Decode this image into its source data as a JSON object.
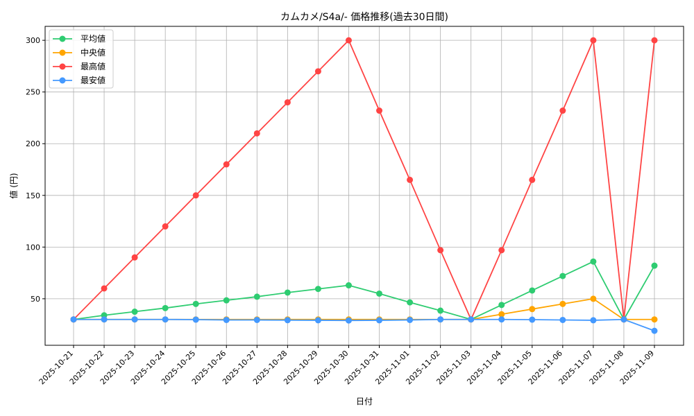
{
  "chart_data": {
    "type": "line",
    "title": "カムカメ/S4a/- 価格推移(過去30日間)",
    "xlabel": "日付",
    "ylabel": "値 (円)",
    "ylim": [
      5,
      313.5
    ],
    "yticks": [
      50,
      100,
      150,
      200,
      250,
      300
    ],
    "grid": true,
    "legend_position": "top-left",
    "x": [
      "2025-10-21",
      "2025-10-22",
      "2025-10-23",
      "2025-10-24",
      "2025-10-25",
      "2025-10-26",
      "2025-10-27",
      "2025-10-28",
      "2025-10-29",
      "2025-10-30",
      "2025-10-31",
      "2025-11-01",
      "2025-11-02",
      "2025-11-03",
      "2025-11-04",
      "2025-11-05",
      "2025-11-06",
      "2025-11-07",
      "2025-11-08",
      "2025-11-09"
    ],
    "series": [
      {
        "name": "平均値",
        "color": "#2ecc71",
        "values": [
          30,
          34,
          37.5,
          41,
          45,
          48.5,
          52,
          56,
          59.5,
          63,
          55,
          46.5,
          38.5,
          30,
          44,
          58,
          72,
          86,
          30,
          82
        ]
      },
      {
        "name": "中央値",
        "color": "#ffa500",
        "values": [
          30,
          30,
          30,
          30,
          30,
          30,
          30,
          30,
          30,
          30,
          30,
          30,
          30,
          30,
          35,
          40,
          45,
          50,
          30,
          30
        ]
      },
      {
        "name": "最高値",
        "color": "#ff4444",
        "values": [
          30,
          60,
          90,
          120,
          150,
          180,
          210,
          240,
          270,
          300,
          232,
          165,
          97,
          30,
          97,
          165,
          232,
          300,
          30,
          300
        ]
      },
      {
        "name": "最安値",
        "color": "#4499ff",
        "values": [
          30,
          30,
          30,
          30,
          29.8,
          29.5,
          29.5,
          29.3,
          29.2,
          29,
          29.2,
          29.5,
          30,
          30,
          30,
          29.8,
          29.5,
          29.2,
          30,
          19
        ]
      }
    ]
  }
}
